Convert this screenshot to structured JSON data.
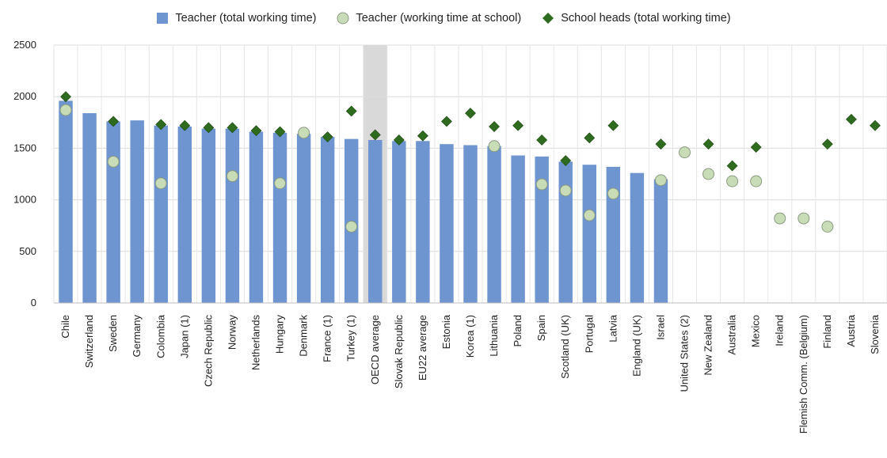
{
  "chart_data": {
    "type": "bar",
    "categories": [
      "Chile",
      "Switzerland",
      "Sweden",
      "Germany",
      "Colombia",
      "Japan (1)",
      "Czech Republic",
      "Norway",
      "Netherlands",
      "Hungary",
      "Denmark",
      "France (1)",
      "Turkey (1)",
      "OECD average",
      "Slovak Republic",
      "EU22 average",
      "Estonia",
      "Korea (1)",
      "Lithuania",
      "Poland",
      "Spain",
      "Scotland (UK)",
      "Portugal",
      "Latvia",
      "England (UK)",
      "Israel",
      "United States (2)",
      "New Zealand",
      "Australia",
      "Mexico",
      "Ireland",
      "Flemish Comm. (Belgium)",
      "Finland",
      "Austria",
      "Slovenia"
    ],
    "highlight_category": "OECD average",
    "series": [
      {
        "name": "Teacher (total working time)",
        "kind": "bar",
        "color": "#6e95cf",
        "values": [
          1960,
          1840,
          1760,
          1770,
          1720,
          1710,
          1690,
          1690,
          1660,
          1650,
          1640,
          1610,
          1590,
          1580,
          1570,
          1570,
          1540,
          1530,
          1520,
          1430,
          1420,
          1370,
          1340,
          1320,
          1260,
          1200,
          null,
          null,
          null,
          null,
          null,
          null,
          null,
          null,
          null
        ]
      },
      {
        "name": "Teacher (working time at school)",
        "kind": "circle",
        "color": "#c9dcb8",
        "values": [
          1870,
          null,
          1370,
          null,
          1160,
          null,
          null,
          1230,
          null,
          1160,
          1650,
          null,
          740,
          null,
          null,
          null,
          null,
          null,
          1520,
          null,
          1150,
          1090,
          850,
          1060,
          null,
          1190,
          1460,
          1250,
          1180,
          1180,
          820,
          820,
          740,
          null,
          null
        ]
      },
      {
        "name": "School heads (total working time)",
        "kind": "diamond",
        "color": "#2e6b1f",
        "values": [
          2000,
          null,
          1760,
          null,
          1730,
          1720,
          1700,
          1700,
          1670,
          1660,
          1650,
          1610,
          1860,
          1630,
          1580,
          1620,
          1760,
          1840,
          1710,
          1720,
          1580,
          1380,
          1600,
          1720,
          null,
          1540,
          null,
          1540,
          1330,
          1510,
          820,
          null,
          1540,
          1780,
          1720
        ]
      }
    ],
    "ylim": [
      0,
      2500
    ],
    "yticks": [
      0,
      500,
      1000,
      1500,
      2000,
      2500
    ],
    "legend_position": "top",
    "grid": true,
    "xlabel": "",
    "ylabel": ""
  }
}
